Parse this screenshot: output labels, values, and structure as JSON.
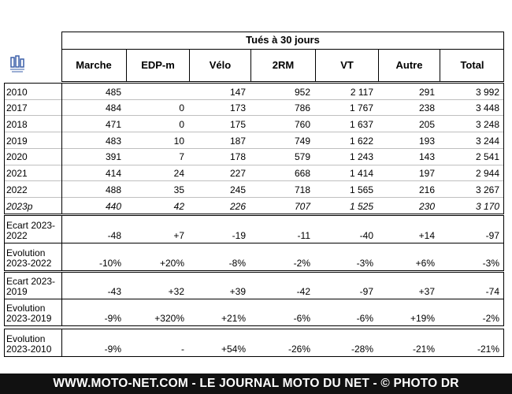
{
  "table": {
    "title": "Tués à 30 jours",
    "columns": [
      "Marche",
      "EDP-m",
      "Vélo",
      "2RM",
      "VT",
      "Autre",
      "Total"
    ],
    "sections": [
      {
        "rows": [
          {
            "label": "2010",
            "cells": [
              "485",
              null,
              "147",
              "952",
              "2 117",
              "291",
              "3 992"
            ]
          },
          {
            "label": "2017",
            "cells": [
              "484",
              "0",
              "173",
              "786",
              "1 767",
              "238",
              "3 448"
            ]
          },
          {
            "label": "2018",
            "cells": [
              "471",
              "0",
              "175",
              "760",
              "1 637",
              "205",
              "3 248"
            ]
          },
          {
            "label": "2019",
            "cells": [
              "483",
              "10",
              "187",
              "749",
              "1 622",
              "193",
              "3 244"
            ]
          },
          {
            "label": "2020",
            "cells": [
              "391",
              "7",
              "178",
              "579",
              "1 243",
              "143",
              "2 541"
            ]
          },
          {
            "label": "2021",
            "cells": [
              "414",
              "24",
              "227",
              "668",
              "1 414",
              "197",
              "2 944"
            ]
          },
          {
            "label": "2022",
            "cells": [
              "488",
              "35",
              "245",
              "718",
              "1 565",
              "216",
              "3 267"
            ]
          },
          {
            "label": "2023p",
            "cells": [
              "440",
              "42",
              "226",
              "707",
              "1 525",
              "230",
              "3 170"
            ]
          }
        ]
      },
      {
        "rows": [
          {
            "label": "Ecart 2023-2022",
            "cells": [
              "-48",
              "+7",
              "-19",
              "-11",
              "-40",
              "+14",
              "-97"
            ]
          },
          {
            "label": "Evolution 2023-2022",
            "cells": [
              "-10%",
              "+20%",
              "-8%",
              "-2%",
              "-3%",
              "+6%",
              "-3%"
            ]
          }
        ]
      },
      {
        "rows": [
          {
            "label": "Ecart 2023-2019",
            "cells": [
              "-43",
              "+32",
              "+39",
              "-42",
              "-97",
              "+37",
              "-74"
            ]
          },
          {
            "label": "Evolution 2023-2019",
            "cells": [
              "-9%",
              "+320%",
              "+21%",
              "-6%",
              "-6%",
              "+19%",
              "-2%"
            ]
          }
        ]
      },
      {
        "rows": [
          {
            "label": "Evolution 2023-2010",
            "cells": [
              "-9%",
              "-",
              "+54%",
              "-26%",
              "-28%",
              "-21%",
              "-21%"
            ]
          }
        ]
      }
    ]
  },
  "footer": "WWW.MOTO-NET.COM - LE JOURNAL MOTO DU NET - © PHOTO DR"
}
